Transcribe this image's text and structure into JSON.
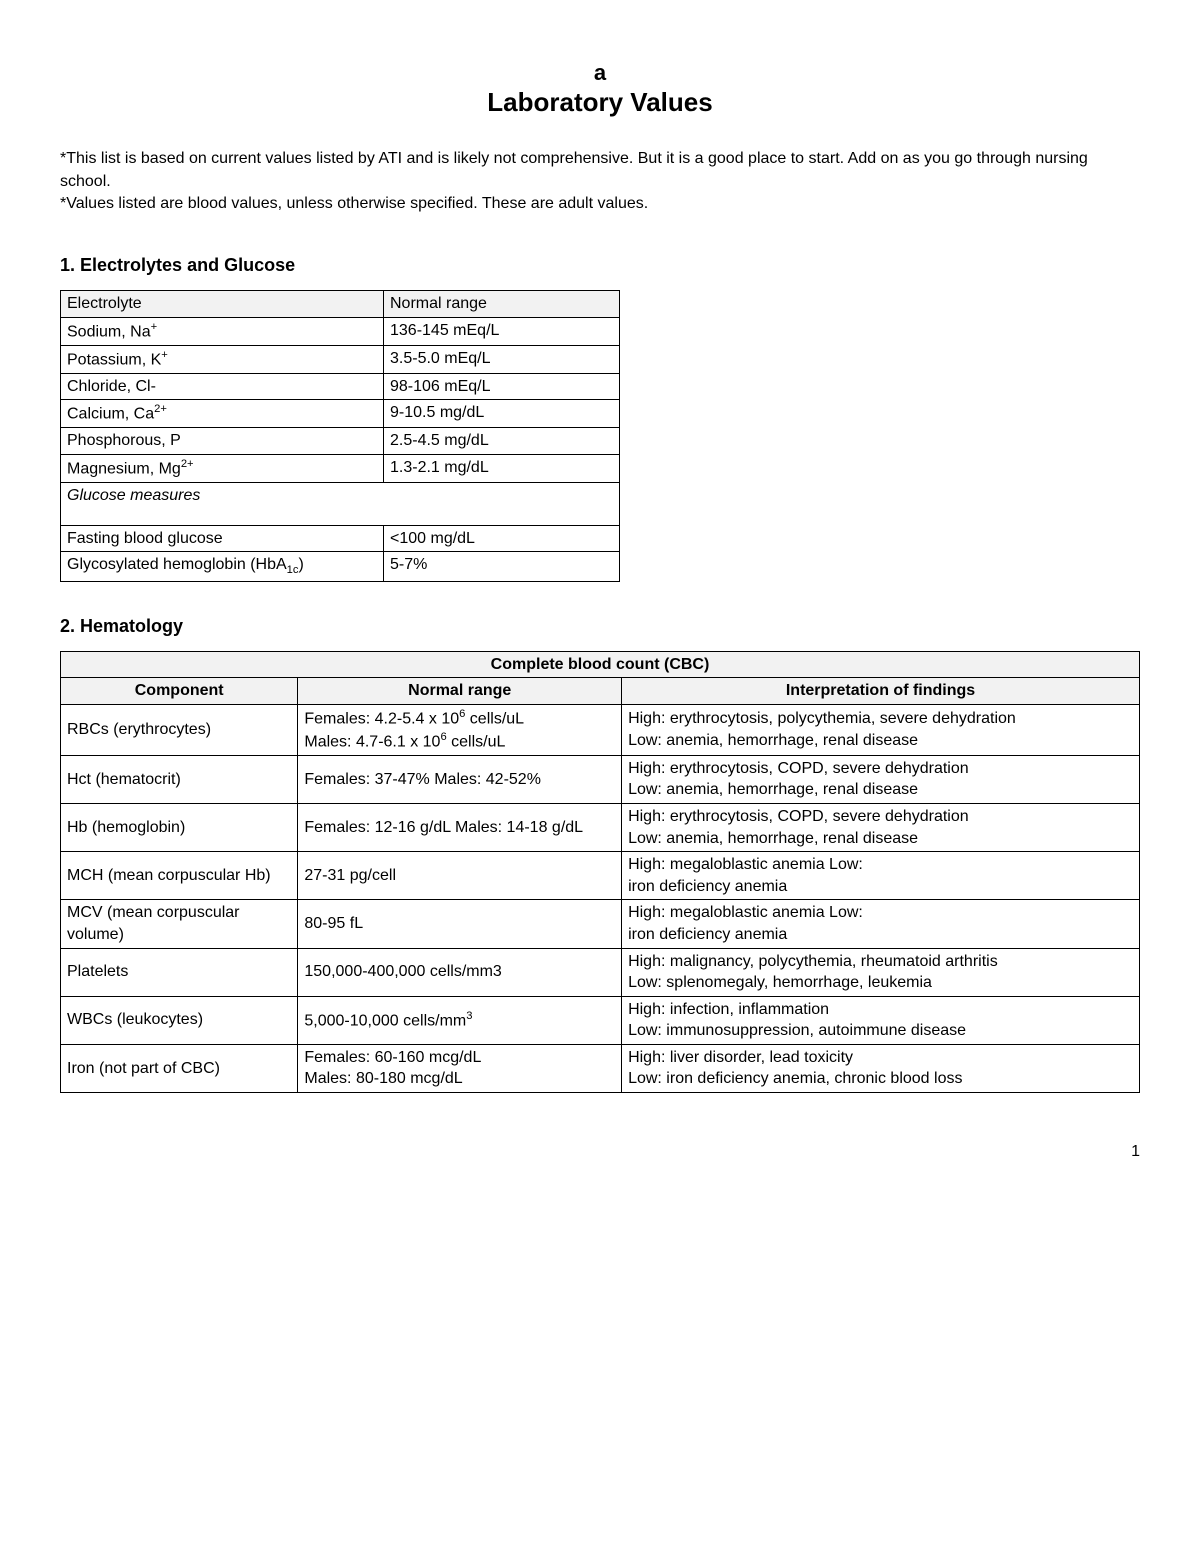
{
  "title": {
    "prefix": "a",
    "main": "Laboratory Values"
  },
  "intro": {
    "line1": "*This list is based on current values listed by ATI and is likely not comprehensive. But it is a good place to start. Add on as you go through nursing school.",
    "line2": "*Values listed are blood values, unless otherwise specified. These are adult values."
  },
  "section1": {
    "heading": "1. Electrolytes and Glucose",
    "headers": {
      "c1": "Electrolyte",
      "c2": "Normal range"
    },
    "rows": [
      {
        "name_html": "Sodium, Na<sup>+</sup>",
        "range": "136-145 mEq/L"
      },
      {
        "name_html": "Potassium, K<sup>+</sup>",
        "range": "3.5-5.0 mEq/L"
      },
      {
        "name_html": "Chloride, Cl-",
        "range": "98-106 mEq/L"
      },
      {
        "name_html": "Calcium, Ca<sup>2+</sup>",
        "range": "9-10.5 mg/dL"
      },
      {
        "name_html": "Phosphorous, P",
        "range": "2.5-4.5 mg/dL"
      },
      {
        "name_html": "Magnesium, Mg<sup>2+</sup>",
        "range": "1.3-2.1 mg/dL"
      }
    ],
    "glucose_divider": "Glucose measures",
    "glucose_rows": [
      {
        "name_html": "Fasting blood glucose",
        "range": "<100 mg/dL"
      },
      {
        "name_html": "Glycosylated hemoglobin (HbA<sub>1c</sub>)",
        "range": "5-7%"
      }
    ]
  },
  "section2": {
    "heading": "2. Hematology",
    "banner": "Complete blood count (CBC)",
    "headers": {
      "c1": "Component",
      "c2": "Normal range",
      "c3": "Interpretation of findings"
    },
    "rows": [
      {
        "comp": "RBCs (erythrocytes)",
        "range_html": "Females: 4.2-5.4 x 10<sup>6</sup> cells/uL<br>Males: 4.7-6.1 x 10<sup>6</sup> cells/uL",
        "interp_html": "High: erythrocytosis, polycythemia, severe dehydration<br>Low: anemia, hemorrhage, renal disease"
      },
      {
        "comp": "Hct (hematocrit)",
        "range_html": "Females: 37-47% Males: 42-52%",
        "interp_html": "High: erythrocytosis, COPD, severe dehydration<br>Low: anemia, hemorrhage, renal disease"
      },
      {
        "comp": "Hb (hemoglobin)",
        "range_html": "Females: 12-16 g/dL Males: 14-18 g/dL",
        "interp_html": "High: erythrocytosis, COPD, severe dehydration<br>Low: anemia, hemorrhage, renal disease"
      },
      {
        "comp": "MCH (mean corpuscular Hb)",
        "range_html": "27-31 pg/cell",
        "interp_html": "High: megaloblastic anemia Low:<br>iron deficiency anemia"
      },
      {
        "comp": "MCV (mean corpuscular volume)",
        "range_html": "80-95 fL",
        "interp_html": "High: megaloblastic anemia Low:<br>iron deficiency anemia"
      },
      {
        "comp": "Platelets",
        "range_html": "150,000-400,000 cells/mm3",
        "interp_html": "High: malignancy, polycythemia, rheumatoid arthritis<br>Low: splenomegaly, hemorrhage, leukemia"
      },
      {
        "comp": "WBCs (leukocytes)",
        "range_html": "5,000-10,000 cells/mm<sup>3</sup>",
        "interp_html": "High: infection, inflammation<br>Low: immunosuppression, autoimmune disease"
      },
      {
        "comp": "Iron (not part of CBC)",
        "range_html": "Females: 60-160 mcg/dL<br>Males: 80-180 mcg/dL",
        "interp_html": "High: liver disorder, lead toxicity<br>Low: iron deficiency anemia, chronic blood loss"
      }
    ]
  },
  "page_number": "1"
}
